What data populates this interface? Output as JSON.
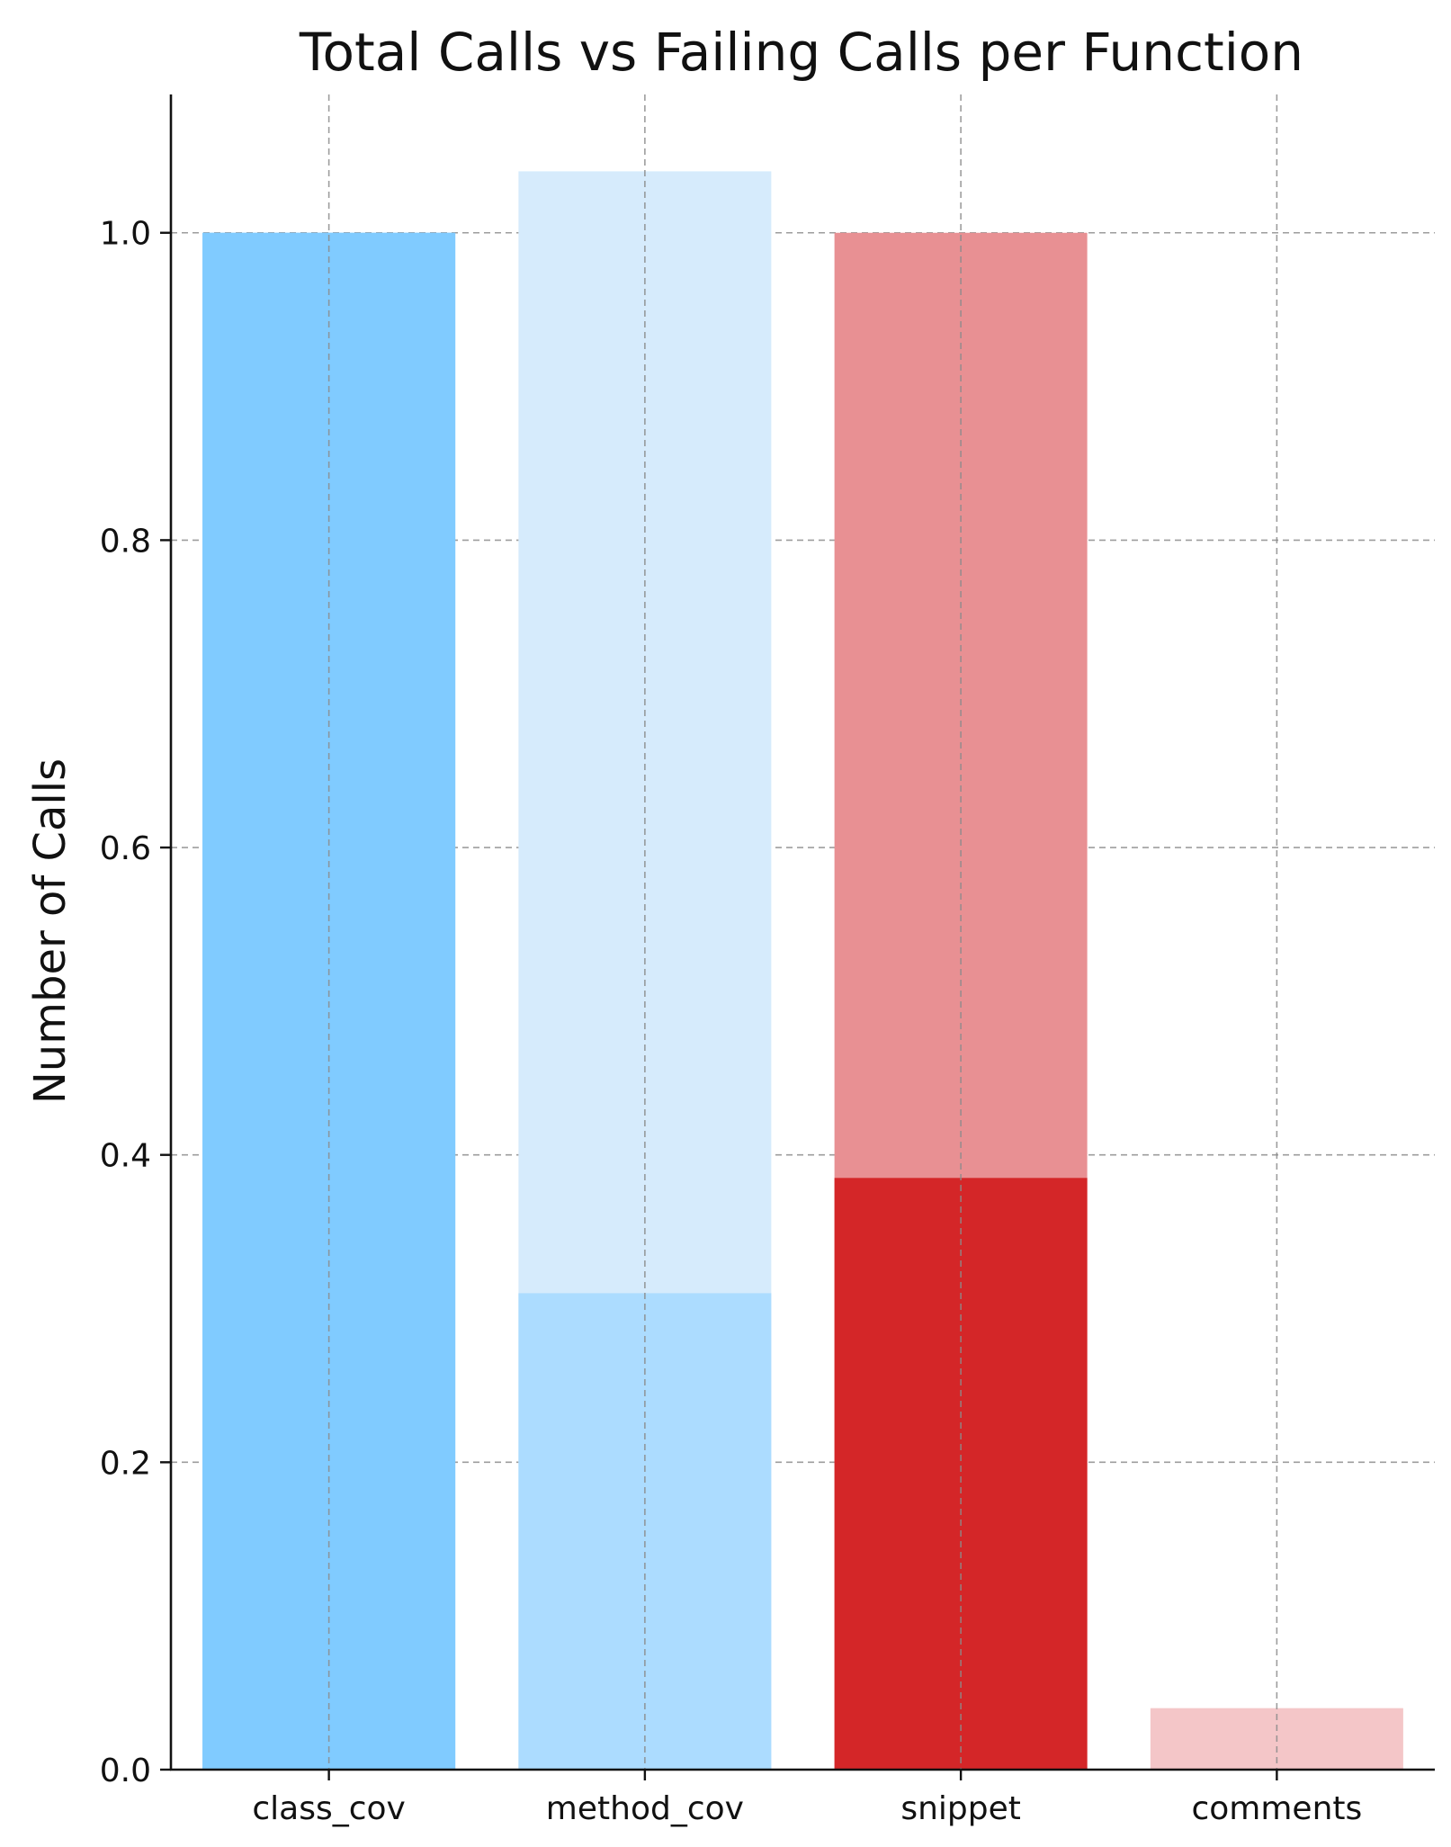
{
  "chart_data": {
    "type": "bar",
    "title": "Total Calls vs Failing Calls per Function",
    "xlabel": "",
    "ylabel": "Number of Calls",
    "categories": [
      "class_cov",
      "method_cov",
      "snippet",
      "comments"
    ],
    "series": [
      {
        "values": [
          1.0,
          1.04,
          1.0,
          0.04
        ],
        "colors": [
          "#80cbff",
          "#d6ebfc",
          "#e89093",
          "#f4c6c8"
        ]
      },
      {
        "values": [
          1.0,
          0.31,
          0.385,
          0.0
        ],
        "colors": [
          "#80cbff",
          "#acdcff",
          "#d42628",
          "#e89093"
        ]
      }
    ],
    "ylim": [
      0,
      1.09
    ],
    "yticks": [
      "0.0",
      "0.2",
      "0.4",
      "0.6",
      "0.8",
      "1.0"
    ],
    "grid": true,
    "legend": "none"
  }
}
